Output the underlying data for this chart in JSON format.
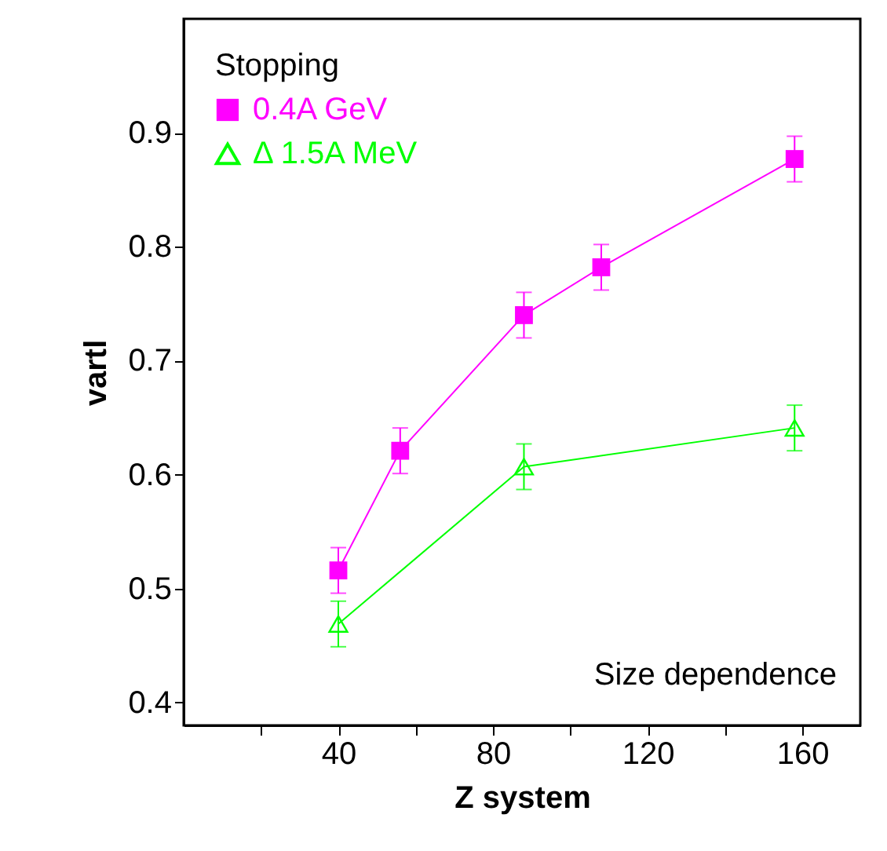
{
  "chart_data": {
    "type": "line",
    "xlabel": "Z system",
    "ylabel": "vartl",
    "legend_title": "Stopping",
    "legend": "top left",
    "annotations": [
      "Size dependence"
    ],
    "xlim": [
      0,
      175
    ],
    "ylim": [
      0.38,
      1.0
    ],
    "xticks": [
      {
        "value": 20,
        "label": null
      },
      40,
      {
        "value": 60,
        "label": null
      },
      80,
      {
        "value": 100,
        "label": null
      },
      120,
      {
        "value": 140,
        "label": null
      },
      160
    ],
    "yticks": [
      0.4,
      0.5,
      0.6,
      0.7,
      0.8,
      0.9
    ],
    "grid": false,
    "series": [
      {
        "name": "0.4A GeV",
        "color": "#ff00ff",
        "marker": "square",
        "x": [
          40,
          56,
          88,
          108,
          158
        ],
        "values": [
          0.516,
          0.621,
          0.74,
          0.782,
          0.877
        ],
        "errors": [
          0.02,
          0.02,
          0.02,
          0.02,
          0.02
        ]
      },
      {
        "name": "Δ 1.5A MeV",
        "color": "#00ff00",
        "marker": "triangle",
        "x": [
          40,
          88,
          158
        ],
        "values": [
          0.469,
          0.607,
          0.641
        ],
        "errors": [
          0.02,
          0.02,
          0.02
        ]
      }
    ]
  }
}
